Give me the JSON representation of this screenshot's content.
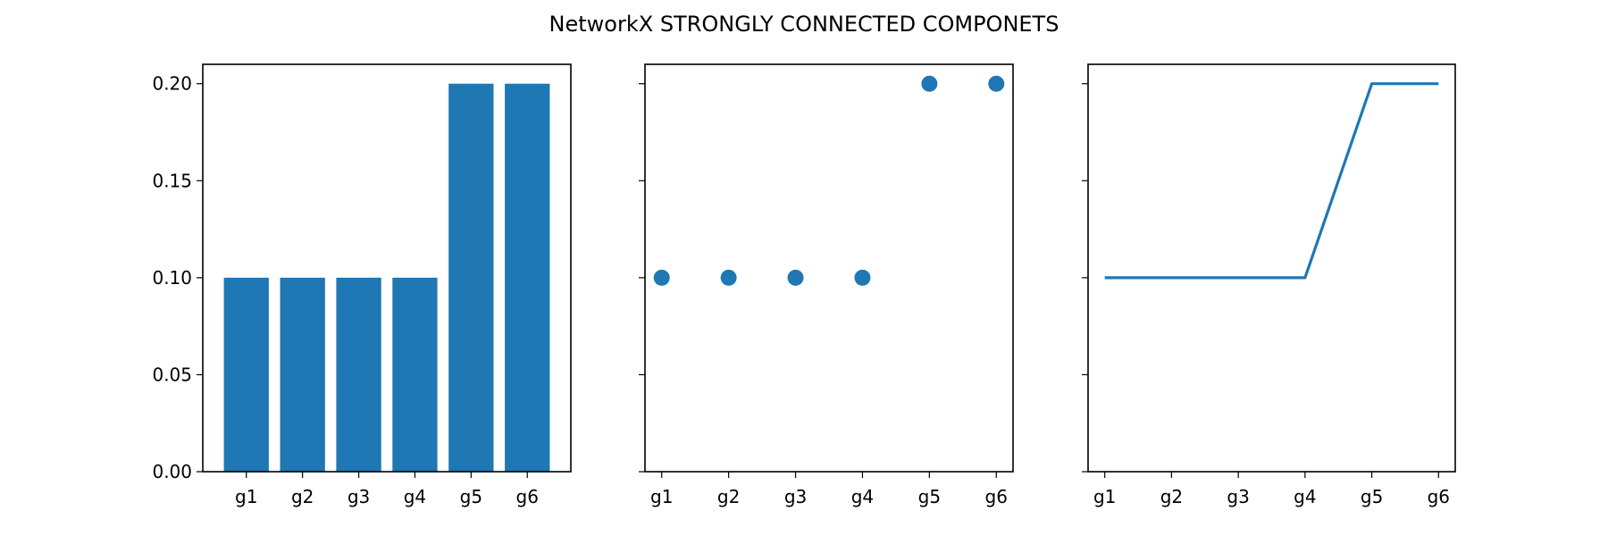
{
  "figure": {
    "title": "NetworkX STRONGLY CONNECTED COMPONETS"
  },
  "chart_data": [
    {
      "type": "bar",
      "categories": [
        "g1",
        "g2",
        "g3",
        "g4",
        "g5",
        "g6"
      ],
      "values": [
        0.1,
        0.1,
        0.1,
        0.1,
        0.2,
        0.2
      ],
      "ylim": [
        0,
        0.21
      ],
      "yticks": [
        "0.00",
        "0.05",
        "0.10",
        "0.15",
        "0.20"
      ],
      "color": "#1f77b4",
      "grid": false
    },
    {
      "type": "scatter",
      "categories": [
        "g1",
        "g2",
        "g3",
        "g4",
        "g5",
        "g6"
      ],
      "values": [
        0.1,
        0.1,
        0.1,
        0.1,
        0.2,
        0.2
      ],
      "ylim": [
        0,
        0.21
      ],
      "color": "#1f77b4",
      "shared_y": true,
      "grid": false
    },
    {
      "type": "line",
      "categories": [
        "g1",
        "g2",
        "g3",
        "g4",
        "g5",
        "g6"
      ],
      "values": [
        0.1,
        0.1,
        0.1,
        0.1,
        0.2,
        0.2
      ],
      "ylim": [
        0,
        0.21
      ],
      "color": "#1f77b4",
      "shared_y": true,
      "grid": false
    }
  ]
}
